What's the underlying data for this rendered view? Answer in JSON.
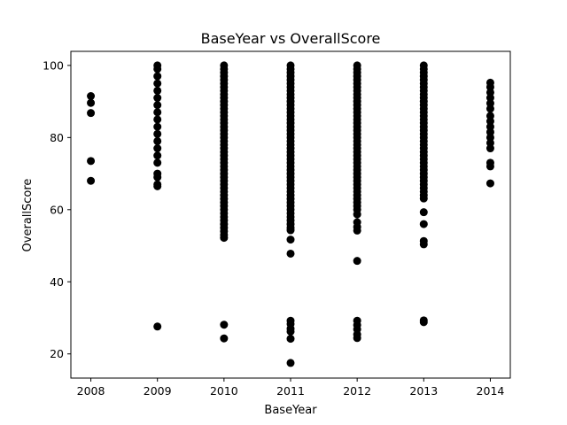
{
  "chart_data": {
    "type": "scatter",
    "title": "BaseYear vs OverallScore",
    "xlabel": "BaseYear",
    "ylabel": "OverallScore",
    "xlim": [
      2007.7,
      2014.3
    ],
    "ylim": [
      13.3,
      103.9
    ],
    "xticks": [
      2008,
      2009,
      2010,
      2011,
      2012,
      2013,
      2014
    ],
    "xtick_labels": [
      "2008",
      "2009",
      "2010",
      "2011",
      "2012",
      "2013",
      "2014"
    ],
    "yticks": [
      20,
      40,
      60,
      80,
      100
    ],
    "ytick_labels": [
      "20",
      "40",
      "60",
      "80",
      "100"
    ],
    "grid": false,
    "marker_color": "#000000",
    "series": [
      {
        "points": [
          {
            "x": 2008,
            "y": 91.5
          },
          {
            "x": 2008,
            "y": 89.6
          },
          {
            "x": 2008,
            "y": 86.8
          },
          {
            "x": 2008,
            "y": 73.5
          },
          {
            "x": 2008,
            "y": 68.0
          },
          {
            "x": 2009,
            "y": 100
          },
          {
            "x": 2009,
            "y": 99
          },
          {
            "x": 2009,
            "y": 97
          },
          {
            "x": 2009,
            "y": 95
          },
          {
            "x": 2009,
            "y": 93
          },
          {
            "x": 2009,
            "y": 91
          },
          {
            "x": 2009,
            "y": 89
          },
          {
            "x": 2009,
            "y": 87
          },
          {
            "x": 2009,
            "y": 85
          },
          {
            "x": 2009,
            "y": 83
          },
          {
            "x": 2009,
            "y": 81
          },
          {
            "x": 2009,
            "y": 79
          },
          {
            "x": 2009,
            "y": 77
          },
          {
            "x": 2009,
            "y": 75
          },
          {
            "x": 2009,
            "y": 73
          },
          {
            "x": 2009,
            "y": 70
          },
          {
            "x": 2009,
            "y": 69
          },
          {
            "x": 2009,
            "y": 67
          },
          {
            "x": 2009,
            "y": 66.5
          },
          {
            "x": 2009,
            "y": 27.6
          },
          {
            "x": 2010,
            "y": 100
          },
          {
            "x": 2010,
            "y": 99
          },
          {
            "x": 2010,
            "y": 98
          },
          {
            "x": 2010,
            "y": 97
          },
          {
            "x": 2010,
            "y": 96
          },
          {
            "x": 2010,
            "y": 95
          },
          {
            "x": 2010,
            "y": 94
          },
          {
            "x": 2010,
            "y": 93
          },
          {
            "x": 2010,
            "y": 92
          },
          {
            "x": 2010,
            "y": 91
          },
          {
            "x": 2010,
            "y": 90
          },
          {
            "x": 2010,
            "y": 89
          },
          {
            "x": 2010,
            "y": 88
          },
          {
            "x": 2010,
            "y": 87
          },
          {
            "x": 2010,
            "y": 86
          },
          {
            "x": 2010,
            "y": 85
          },
          {
            "x": 2010,
            "y": 84
          },
          {
            "x": 2010,
            "y": 83
          },
          {
            "x": 2010,
            "y": 82
          },
          {
            "x": 2010,
            "y": 81
          },
          {
            "x": 2010,
            "y": 80
          },
          {
            "x": 2010,
            "y": 79
          },
          {
            "x": 2010,
            "y": 78
          },
          {
            "x": 2010,
            "y": 77
          },
          {
            "x": 2010,
            "y": 76
          },
          {
            "x": 2010,
            "y": 75
          },
          {
            "x": 2010,
            "y": 74
          },
          {
            "x": 2010,
            "y": 73
          },
          {
            "x": 2010,
            "y": 72
          },
          {
            "x": 2010,
            "y": 71
          },
          {
            "x": 2010,
            "y": 70
          },
          {
            "x": 2010,
            "y": 69
          },
          {
            "x": 2010,
            "y": 68
          },
          {
            "x": 2010,
            "y": 67
          },
          {
            "x": 2010,
            "y": 66
          },
          {
            "x": 2010,
            "y": 65
          },
          {
            "x": 2010,
            "y": 64
          },
          {
            "x": 2010,
            "y": 63
          },
          {
            "x": 2010,
            "y": 62
          },
          {
            "x": 2010,
            "y": 61
          },
          {
            "x": 2010,
            "y": 60
          },
          {
            "x": 2010,
            "y": 59
          },
          {
            "x": 2010,
            "y": 58
          },
          {
            "x": 2010,
            "y": 57
          },
          {
            "x": 2010,
            "y": 56
          },
          {
            "x": 2010,
            "y": 55
          },
          {
            "x": 2010,
            "y": 54
          },
          {
            "x": 2010,
            "y": 53
          },
          {
            "x": 2010,
            "y": 52.2
          },
          {
            "x": 2010,
            "y": 28.1
          },
          {
            "x": 2010,
            "y": 24.3
          },
          {
            "x": 2011,
            "y": 100
          },
          {
            "x": 2011,
            "y": 99
          },
          {
            "x": 2011,
            "y": 98
          },
          {
            "x": 2011,
            "y": 97
          },
          {
            "x": 2011,
            "y": 96
          },
          {
            "x": 2011,
            "y": 95
          },
          {
            "x": 2011,
            "y": 94
          },
          {
            "x": 2011,
            "y": 93
          },
          {
            "x": 2011,
            "y": 92
          },
          {
            "x": 2011,
            "y": 91
          },
          {
            "x": 2011,
            "y": 90
          },
          {
            "x": 2011,
            "y": 89
          },
          {
            "x": 2011,
            "y": 88
          },
          {
            "x": 2011,
            "y": 87
          },
          {
            "x": 2011,
            "y": 86
          },
          {
            "x": 2011,
            "y": 85
          },
          {
            "x": 2011,
            "y": 84
          },
          {
            "x": 2011,
            "y": 83
          },
          {
            "x": 2011,
            "y": 82
          },
          {
            "x": 2011,
            "y": 81
          },
          {
            "x": 2011,
            "y": 80
          },
          {
            "x": 2011,
            "y": 79
          },
          {
            "x": 2011,
            "y": 78
          },
          {
            "x": 2011,
            "y": 77
          },
          {
            "x": 2011,
            "y": 76
          },
          {
            "x": 2011,
            "y": 75
          },
          {
            "x": 2011,
            "y": 74
          },
          {
            "x": 2011,
            "y": 73
          },
          {
            "x": 2011,
            "y": 72
          },
          {
            "x": 2011,
            "y": 71
          },
          {
            "x": 2011,
            "y": 70
          },
          {
            "x": 2011,
            "y": 69
          },
          {
            "x": 2011,
            "y": 68
          },
          {
            "x": 2011,
            "y": 67
          },
          {
            "x": 2011,
            "y": 66
          },
          {
            "x": 2011,
            "y": 65
          },
          {
            "x": 2011,
            "y": 64
          },
          {
            "x": 2011,
            "y": 63
          },
          {
            "x": 2011,
            "y": 62
          },
          {
            "x": 2011,
            "y": 61
          },
          {
            "x": 2011,
            "y": 60
          },
          {
            "x": 2011,
            "y": 59
          },
          {
            "x": 2011,
            "y": 58
          },
          {
            "x": 2011,
            "y": 57
          },
          {
            "x": 2011,
            "y": 56
          },
          {
            "x": 2011,
            "y": 55
          },
          {
            "x": 2011,
            "y": 54.3
          },
          {
            "x": 2011,
            "y": 51.7
          },
          {
            "x": 2011,
            "y": 47.8
          },
          {
            "x": 2011,
            "y": 29.2
          },
          {
            "x": 2011,
            "y": 28.3
          },
          {
            "x": 2011,
            "y": 27.0
          },
          {
            "x": 2011,
            "y": 26.2
          },
          {
            "x": 2011,
            "y": 24.2
          },
          {
            "x": 2011,
            "y": 17.5
          },
          {
            "x": 2012,
            "y": 100
          },
          {
            "x": 2012,
            "y": 99
          },
          {
            "x": 2012,
            "y": 98
          },
          {
            "x": 2012,
            "y": 97
          },
          {
            "x": 2012,
            "y": 96
          },
          {
            "x": 2012,
            "y": 95
          },
          {
            "x": 2012,
            "y": 94
          },
          {
            "x": 2012,
            "y": 93
          },
          {
            "x": 2012,
            "y": 92
          },
          {
            "x": 2012,
            "y": 91
          },
          {
            "x": 2012,
            "y": 90
          },
          {
            "x": 2012,
            "y": 89
          },
          {
            "x": 2012,
            "y": 88
          },
          {
            "x": 2012,
            "y": 87
          },
          {
            "x": 2012,
            "y": 86
          },
          {
            "x": 2012,
            "y": 85
          },
          {
            "x": 2012,
            "y": 84
          },
          {
            "x": 2012,
            "y": 83
          },
          {
            "x": 2012,
            "y": 82
          },
          {
            "x": 2012,
            "y": 81
          },
          {
            "x": 2012,
            "y": 80
          },
          {
            "x": 2012,
            "y": 79
          },
          {
            "x": 2012,
            "y": 78
          },
          {
            "x": 2012,
            "y": 77
          },
          {
            "x": 2012,
            "y": 76
          },
          {
            "x": 2012,
            "y": 75
          },
          {
            "x": 2012,
            "y": 74
          },
          {
            "x": 2012,
            "y": 73
          },
          {
            "x": 2012,
            "y": 72
          },
          {
            "x": 2012,
            "y": 71
          },
          {
            "x": 2012,
            "y": 70
          },
          {
            "x": 2012,
            "y": 69
          },
          {
            "x": 2012,
            "y": 68
          },
          {
            "x": 2012,
            "y": 67
          },
          {
            "x": 2012,
            "y": 66
          },
          {
            "x": 2012,
            "y": 65
          },
          {
            "x": 2012,
            "y": 64
          },
          {
            "x": 2012,
            "y": 63
          },
          {
            "x": 2012,
            "y": 62
          },
          {
            "x": 2012,
            "y": 61
          },
          {
            "x": 2012,
            "y": 60
          },
          {
            "x": 2012,
            "y": 58.7
          },
          {
            "x": 2012,
            "y": 56.5
          },
          {
            "x": 2012,
            "y": 55.2
          },
          {
            "x": 2012,
            "y": 54.2
          },
          {
            "x": 2012,
            "y": 45.8
          },
          {
            "x": 2012,
            "y": 29.2
          },
          {
            "x": 2012,
            "y": 28.0
          },
          {
            "x": 2012,
            "y": 26.8
          },
          {
            "x": 2012,
            "y": 25.4
          },
          {
            "x": 2012,
            "y": 24.4
          },
          {
            "x": 2013,
            "y": 100
          },
          {
            "x": 2013,
            "y": 99
          },
          {
            "x": 2013,
            "y": 98
          },
          {
            "x": 2013,
            "y": 97
          },
          {
            "x": 2013,
            "y": 96
          },
          {
            "x": 2013,
            "y": 95
          },
          {
            "x": 2013,
            "y": 94
          },
          {
            "x": 2013,
            "y": 93
          },
          {
            "x": 2013,
            "y": 92
          },
          {
            "x": 2013,
            "y": 91
          },
          {
            "x": 2013,
            "y": 90
          },
          {
            "x": 2013,
            "y": 89
          },
          {
            "x": 2013,
            "y": 88
          },
          {
            "x": 2013,
            "y": 87
          },
          {
            "x": 2013,
            "y": 86
          },
          {
            "x": 2013,
            "y": 85
          },
          {
            "x": 2013,
            "y": 84
          },
          {
            "x": 2013,
            "y": 83
          },
          {
            "x": 2013,
            "y": 82
          },
          {
            "x": 2013,
            "y": 81
          },
          {
            "x": 2013,
            "y": 80
          },
          {
            "x": 2013,
            "y": 79
          },
          {
            "x": 2013,
            "y": 78
          },
          {
            "x": 2013,
            "y": 77
          },
          {
            "x": 2013,
            "y": 76
          },
          {
            "x": 2013,
            "y": 75
          },
          {
            "x": 2013,
            "y": 74
          },
          {
            "x": 2013,
            "y": 73
          },
          {
            "x": 2013,
            "y": 72
          },
          {
            "x": 2013,
            "y": 71
          },
          {
            "x": 2013,
            "y": 70
          },
          {
            "x": 2013,
            "y": 69
          },
          {
            "x": 2013,
            "y": 68
          },
          {
            "x": 2013,
            "y": 67
          },
          {
            "x": 2013,
            "y": 66
          },
          {
            "x": 2013,
            "y": 65
          },
          {
            "x": 2013,
            "y": 64
          },
          {
            "x": 2013,
            "y": 63.1
          },
          {
            "x": 2013,
            "y": 59.3
          },
          {
            "x": 2013,
            "y": 56.0
          },
          {
            "x": 2013,
            "y": 51.3
          },
          {
            "x": 2013,
            "y": 50.4
          },
          {
            "x": 2013,
            "y": 29.3
          },
          {
            "x": 2013,
            "y": 28.8
          },
          {
            "x": 2014,
            "y": 95.2
          },
          {
            "x": 2014,
            "y": 94
          },
          {
            "x": 2014,
            "y": 92.5
          },
          {
            "x": 2014,
            "y": 91
          },
          {
            "x": 2014,
            "y": 89.5
          },
          {
            "x": 2014,
            "y": 88
          },
          {
            "x": 2014,
            "y": 86
          },
          {
            "x": 2014,
            "y": 84.5
          },
          {
            "x": 2014,
            "y": 83
          },
          {
            "x": 2014,
            "y": 81.5
          },
          {
            "x": 2014,
            "y": 80
          },
          {
            "x": 2014,
            "y": 78.5
          },
          {
            "x": 2014,
            "y": 77
          },
          {
            "x": 2014,
            "y": 73
          },
          {
            "x": 2014,
            "y": 72
          },
          {
            "x": 2014,
            "y": 67.3
          }
        ]
      }
    ]
  }
}
